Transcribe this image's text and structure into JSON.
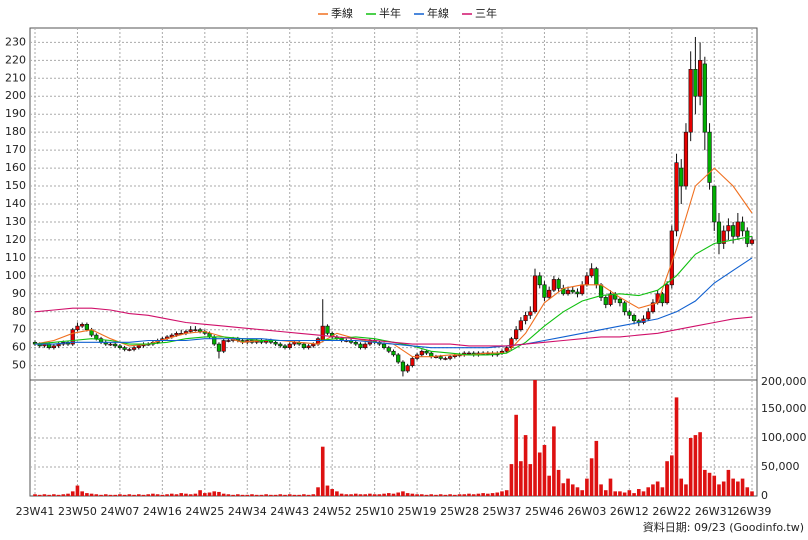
{
  "chart_data": {
    "type": "candlestick",
    "categories": [
      "23W41",
      null,
      null,
      null,
      null,
      null,
      null,
      null,
      null,
      "23W50",
      null,
      null,
      null,
      null,
      null,
      null,
      null,
      null,
      "24W07",
      null,
      null,
      null,
      null,
      null,
      null,
      null,
      null,
      "24W16",
      null,
      null,
      null,
      null,
      null,
      null,
      null,
      null,
      "24W25",
      null,
      null,
      null,
      null,
      null,
      null,
      null,
      null,
      "24W34",
      null,
      null,
      null,
      null,
      null,
      null,
      null,
      null,
      "24W43",
      null,
      null,
      null,
      null,
      null,
      null,
      null,
      null,
      "24W52",
      null,
      null,
      null,
      null,
      null,
      null,
      null,
      null,
      "25W10",
      null,
      null,
      null,
      null,
      null,
      null,
      null,
      null,
      "25W19",
      null,
      null,
      null,
      null,
      null,
      null,
      null,
      null,
      "25W28",
      null,
      null,
      null,
      null,
      null,
      null,
      null,
      null,
      "25W37",
      null,
      null,
      null,
      null,
      null,
      null,
      null,
      null,
      "25W46",
      null,
      null,
      null,
      null,
      null,
      null,
      null,
      null,
      "26W03",
      null,
      null,
      null,
      null,
      null,
      null,
      null,
      null,
      "26W12",
      null,
      null,
      null,
      null,
      null,
      null,
      null,
      null,
      "26W22",
      null,
      null,
      null,
      null,
      null,
      null,
      null,
      null,
      "26W31",
      null,
      null,
      null,
      null,
      null,
      null,
      null,
      "26W39"
    ],
    "ohlc": [
      [
        63,
        64,
        61,
        62
      ],
      [
        62,
        63,
        60,
        61
      ],
      [
        61,
        63,
        60,
        62
      ],
      [
        62,
        63,
        59,
        60
      ],
      [
        60,
        62,
        59,
        61
      ],
      [
        61,
        63,
        60,
        62
      ],
      [
        62,
        64,
        61,
        63
      ],
      [
        63,
        64,
        61,
        62
      ],
      [
        62,
        71,
        61,
        70
      ],
      [
        70,
        74,
        69,
        72
      ],
      [
        72,
        74,
        71,
        73
      ],
      [
        73,
        74,
        69,
        70
      ],
      [
        70,
        71,
        66,
        67
      ],
      [
        67,
        68,
        64,
        65
      ],
      [
        65,
        66,
        62,
        63
      ],
      [
        63,
        64,
        61,
        62
      ],
      [
        62,
        63,
        61,
        62
      ],
      [
        62,
        63,
        60,
        61
      ],
      [
        61,
        62,
        59,
        60
      ],
      [
        60,
        61,
        58,
        59
      ],
      [
        59,
        60,
        58,
        59
      ],
      [
        59,
        61,
        58,
        60
      ],
      [
        60,
        62,
        59,
        61
      ],
      [
        61,
        63,
        60,
        62
      ],
      [
        62,
        63,
        61,
        62
      ],
      [
        62,
        64,
        61,
        63
      ],
      [
        63,
        65,
        62,
        64
      ],
      [
        64,
        66,
        63,
        65
      ],
      [
        65,
        67,
        64,
        66
      ],
      [
        66,
        68,
        65,
        67
      ],
      [
        67,
        69,
        66,
        68
      ],
      [
        68,
        70,
        67,
        68
      ],
      [
        68,
        70,
        67,
        69
      ],
      [
        69,
        72,
        68,
        70
      ],
      [
        70,
        72,
        69,
        70
      ],
      [
        70,
        71,
        68,
        69
      ],
      [
        69,
        70,
        67,
        68
      ],
      [
        68,
        69,
        65,
        66
      ],
      [
        66,
        67,
        61,
        62
      ],
      [
        62,
        63,
        54,
        58
      ],
      [
        58,
        65,
        57,
        64
      ],
      [
        64,
        65,
        63,
        64
      ],
      [
        64,
        66,
        63,
        65
      ],
      [
        65,
        66,
        63,
        64
      ],
      [
        64,
        65,
        62,
        63
      ],
      [
        63,
        65,
        62,
        64
      ],
      [
        64,
        65,
        62,
        63
      ],
      [
        63,
        65,
        62,
        64
      ],
      [
        64,
        65,
        62,
        63
      ],
      [
        63,
        65,
        62,
        64
      ],
      [
        64,
        65,
        62,
        63
      ],
      [
        63,
        64,
        61,
        62
      ],
      [
        62,
        63,
        60,
        61
      ],
      [
        61,
        62,
        59,
        60
      ],
      [
        60,
        63,
        59,
        62
      ],
      [
        62,
        64,
        61,
        63
      ],
      [
        63,
        64,
        61,
        62
      ],
      [
        62,
        63,
        59,
        60
      ],
      [
        60,
        62,
        59,
        61
      ],
      [
        61,
        63,
        60,
        62
      ],
      [
        62,
        66,
        61,
        65
      ],
      [
        64,
        87,
        63,
        72
      ],
      [
        72,
        73,
        67,
        68
      ],
      [
        68,
        69,
        65,
        66
      ],
      [
        66,
        67,
        64,
        65
      ],
      [
        65,
        66,
        63,
        64
      ],
      [
        64,
        65,
        63,
        64
      ],
      [
        64,
        65,
        62,
        63
      ],
      [
        63,
        64,
        61,
        62
      ],
      [
        62,
        63,
        59,
        60
      ],
      [
        60,
        63,
        59,
        62
      ],
      [
        62,
        65,
        61,
        64
      ],
      [
        64,
        65,
        62,
        63
      ],
      [
        63,
        64,
        61,
        62
      ],
      [
        62,
        63,
        59,
        60
      ],
      [
        60,
        61,
        57,
        58
      ],
      [
        58,
        59,
        55,
        56
      ],
      [
        56,
        57,
        51,
        52
      ],
      [
        52,
        53,
        44,
        47
      ],
      [
        47,
        51,
        46,
        50
      ],
      [
        50,
        55,
        49,
        54
      ],
      [
        54,
        57,
        53,
        56
      ],
      [
        56,
        59,
        55,
        58
      ],
      [
        58,
        59,
        56,
        57
      ],
      [
        57,
        58,
        54,
        55
      ],
      [
        55,
        56,
        54,
        55
      ],
      [
        55,
        56,
        53,
        54
      ],
      [
        54,
        55,
        53,
        54
      ],
      [
        54,
        56,
        53,
        55
      ],
      [
        55,
        57,
        54,
        56
      ],
      [
        56,
        57,
        55,
        56
      ],
      [
        56,
        58,
        55,
        57
      ],
      [
        57,
        58,
        56,
        57
      ],
      [
        57,
        58,
        55,
        56
      ],
      [
        56,
        58,
        55,
        57
      ],
      [
        57,
        58,
        56,
        57
      ],
      [
        57,
        58,
        56,
        57
      ],
      [
        57,
        58,
        55,
        56
      ],
      [
        56,
        58,
        55,
        57
      ],
      [
        57,
        59,
        56,
        58
      ],
      [
        58,
        61,
        57,
        60
      ],
      [
        60,
        66,
        59,
        65
      ],
      [
        65,
        72,
        64,
        70
      ],
      [
        70,
        77,
        69,
        75
      ],
      [
        75,
        80,
        73,
        78
      ],
      [
        78,
        83,
        76,
        80
      ],
      [
        80,
        104,
        79,
        100
      ],
      [
        100,
        102,
        93,
        95
      ],
      [
        95,
        97,
        86,
        88
      ],
      [
        88,
        94,
        87,
        92
      ],
      [
        92,
        100,
        91,
        98
      ],
      [
        98,
        99,
        91,
        93
      ],
      [
        93,
        95,
        89,
        90
      ],
      [
        90,
        94,
        89,
        92
      ],
      [
        92,
        94,
        90,
        91
      ],
      [
        91,
        93,
        88,
        90
      ],
      [
        90,
        97,
        89,
        95
      ],
      [
        95,
        102,
        94,
        100
      ],
      [
        100,
        107,
        99,
        104
      ],
      [
        104,
        105,
        93,
        95
      ],
      [
        95,
        96,
        86,
        88
      ],
      [
        88,
        89,
        82,
        84
      ],
      [
        84,
        92,
        83,
        90
      ],
      [
        90,
        91,
        85,
        87
      ],
      [
        87,
        88,
        83,
        85
      ],
      [
        85,
        86,
        78,
        80
      ],
      [
        80,
        81,
        76,
        78
      ],
      [
        78,
        79,
        73,
        75
      ],
      [
        75,
        76,
        72,
        74
      ],
      [
        74,
        78,
        73,
        76
      ],
      [
        76,
        82,
        75,
        80
      ],
      [
        80,
        87,
        79,
        85
      ],
      [
        85,
        92,
        84,
        90
      ],
      [
        90,
        91,
        83,
        85
      ],
      [
        85,
        97,
        84,
        95
      ],
      [
        95,
        128,
        93,
        125
      ],
      [
        125,
        168,
        122,
        163
      ],
      [
        160,
        165,
        140,
        150
      ],
      [
        150,
        185,
        148,
        180
      ],
      [
        180,
        225,
        175,
        215
      ],
      [
        215,
        233,
        190,
        200
      ],
      [
        200,
        230,
        195,
        220
      ],
      [
        218,
        222,
        170,
        180
      ],
      [
        180,
        185,
        148,
        152
      ],
      [
        150,
        150,
        125,
        130
      ],
      [
        130,
        135,
        112,
        118
      ],
      [
        118,
        128,
        115,
        125
      ],
      [
        125,
        132,
        120,
        128
      ],
      [
        128,
        130,
        118,
        122
      ],
      [
        122,
        135,
        120,
        130
      ],
      [
        130,
        133,
        122,
        125
      ],
      [
        125,
        127,
        116,
        118
      ],
      [
        118,
        122,
        117,
        120
      ]
    ],
    "volume": [
      3000,
      2000,
      3000,
      2000,
      3000,
      2000,
      3000,
      4000,
      8000,
      18000,
      8000,
      5000,
      4000,
      3000,
      2000,
      3000,
      2000,
      2000,
      3000,
      2000,
      3000,
      2000,
      3000,
      2000,
      3000,
      4000,
      3000,
      2000,
      3000,
      4000,
      3000,
      5000,
      4000,
      3000,
      4000,
      10000,
      5000,
      6000,
      8000,
      7000,
      4000,
      3000,
      2000,
      3000,
      2000,
      2000,
      3000,
      2000,
      2000,
      3000,
      2000,
      2000,
      3000,
      2000,
      3000,
      2000,
      2000,
      3000,
      2000,
      3000,
      15000,
      85000,
      18000,
      12000,
      8000,
      4000,
      3000,
      3000,
      4000,
      3000,
      3000,
      4000,
      3000,
      3000,
      4000,
      5000,
      4000,
      6000,
      8000,
      5000,
      4000,
      3000,
      3000,
      2000,
      3000,
      2000,
      3000,
      2000,
      3000,
      2000,
      3000,
      3000,
      4000,
      3000,
      4000,
      5000,
      4000,
      5000,
      6000,
      8000,
      10000,
      55000,
      140000,
      60000,
      105000,
      55000,
      200000,
      75000,
      88000,
      35000,
      120000,
      45000,
      22000,
      30000,
      20000,
      15000,
      10000,
      30000,
      65000,
      95000,
      20000,
      10000,
      30000,
      8000,
      8000,
      6000,
      10000,
      5000,
      12000,
      8000,
      15000,
      20000,
      25000,
      15000,
      60000,
      70000,
      170000,
      30000,
      20000,
      100000,
      105000,
      110000,
      45000,
      40000,
      35000,
      20000,
      25000,
      45000,
      30000,
      25000,
      30000,
      15000,
      8000
    ],
    "up_color": "#e60000",
    "down_color": "#00b000",
    "volume_color": "#dd1111",
    "ylim": [
      42,
      238
    ],
    "yticks": [
      50,
      60,
      70,
      80,
      90,
      100,
      110,
      120,
      130,
      140,
      150,
      160,
      170,
      180,
      190,
      200,
      210,
      220,
      230
    ],
    "vlim": [
      0,
      200000
    ],
    "vticks": [
      0,
      {
        "value": 50000,
        "label": "50,000"
      },
      {
        "value": 100000,
        "label": "100,000"
      },
      {
        "value": 150000,
        "label": "150,000"
      },
      {
        "value": 200000,
        "label": "200,000"
      }
    ],
    "grid": true,
    "lines": {
      "x": [
        0,
        4,
        8,
        12,
        16,
        20,
        24,
        28,
        32,
        36,
        40,
        44,
        48,
        52,
        56,
        60,
        64,
        68,
        72,
        76,
        80,
        84,
        88,
        92,
        96,
        100,
        104,
        108,
        112,
        116,
        120,
        124,
        128,
        132,
        136,
        140,
        144,
        148,
        152
      ],
      "series": [
        {
          "name": "季線",
          "color": "#f07020",
          "values": [
            62,
            64,
            68,
            70,
            65,
            61,
            62,
            65,
            68,
            69,
            66,
            63,
            64,
            64,
            63,
            62,
            68,
            65,
            63,
            62,
            55,
            55,
            56,
            56,
            57,
            57,
            68,
            85,
            93,
            95,
            95,
            88,
            82,
            85,
            115,
            150,
            160,
            150,
            135
          ]
        },
        {
          "name": "半年",
          "color": "#10c010",
          "values": [
            62,
            63,
            64,
            65,
            64,
            62,
            62,
            63,
            65,
            66,
            66,
            65,
            64,
            64,
            64,
            64,
            65,
            66,
            65,
            63,
            61,
            58,
            57,
            56,
            56,
            57,
            63,
            72,
            80,
            86,
            89,
            90,
            89,
            92,
            100,
            112,
            118,
            120,
            122
          ]
        },
        {
          "name": "年線",
          "color": "#1060d0",
          "values": [
            62,
            62,
            63,
            63,
            63,
            63,
            64,
            64,
            64,
            65,
            65,
            65,
            65,
            64,
            64,
            64,
            64,
            64,
            63,
            62,
            61,
            60,
            60,
            60,
            60,
            61,
            62,
            64,
            66,
            68,
            70,
            72,
            74,
            76,
            80,
            86,
            96,
            103,
            110
          ]
        },
        {
          "name": "三年",
          "color": "#d0106a",
          "values": [
            80,
            81,
            82,
            82,
            81,
            79,
            78,
            76,
            74,
            73,
            72,
            71,
            70,
            69,
            68,
            67,
            66,
            65,
            64,
            63,
            62,
            62,
            62,
            61,
            61,
            61,
            62,
            63,
            64,
            65,
            66,
            66,
            67,
            68,
            70,
            72,
            74,
            76,
            77
          ]
        }
      ]
    },
    "source": "資料日期: 09/23 (Goodinfo.tw)"
  }
}
